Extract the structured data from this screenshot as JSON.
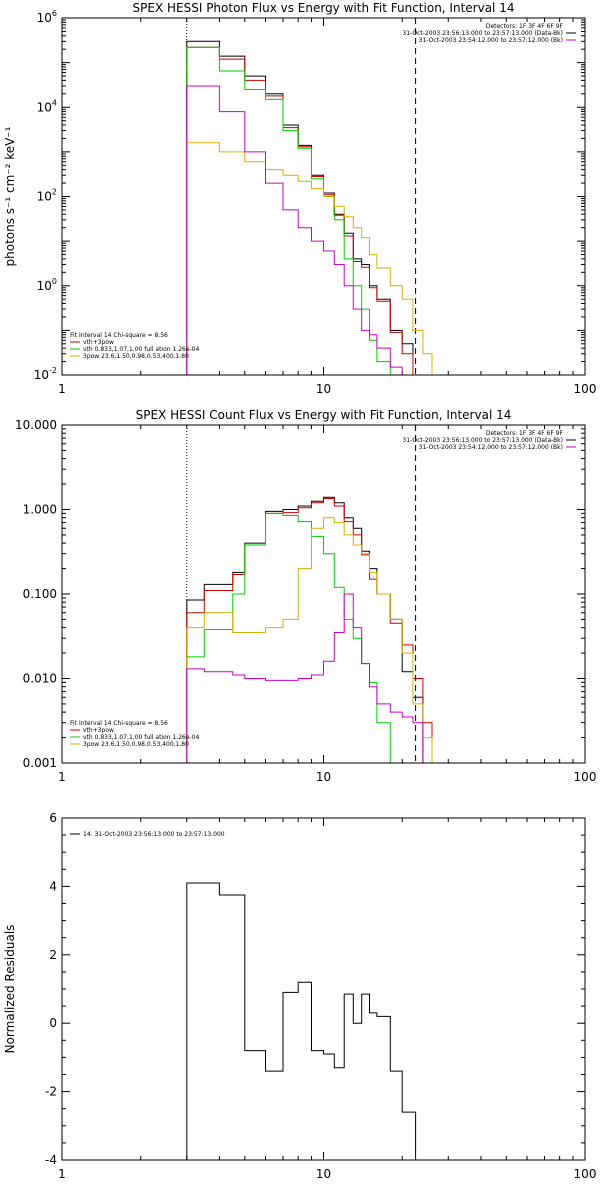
{
  "chart_data": [
    {
      "type": "line",
      "title": "SPEX HESSI Photon Flux vs Energy with Fit Function, Interval 14",
      "ylabel": "photons s⁻¹ cm⁻² keV⁻¹",
      "xlabel": "",
      "xscale": "log",
      "yscale": "log",
      "xlim": [
        1,
        100
      ],
      "ylim": [
        0.01,
        1000000
      ],
      "x_tick_labels": [
        "1",
        "10",
        "100"
      ],
      "y_ticks": [
        {
          "v": 0.01,
          "base": "10",
          "exp": "-2"
        },
        {
          "v": 1,
          "base": "10",
          "exp": "0"
        },
        {
          "v": 100,
          "base": "10",
          "exp": "2"
        },
        {
          "v": 10000,
          "base": "10",
          "exp": "4"
        },
        {
          "v": 1000000,
          "base": "10",
          "exp": "6"
        }
      ],
      "vlines": [
        {
          "x": 3.0,
          "style": "dotted",
          "color": "#000000"
        },
        {
          "x": 22.5,
          "style": "dashed",
          "color": "#000000"
        }
      ],
      "header_lines": [
        "Detectors: 1F 3F 4F 6F 9F",
        "31-Oct-2003 23:56:13.000 to 23:57:13.000 (Data-Bk)",
        "31-Oct-2003 23:54:12.000 to 23:57:12.000 (Bk)"
      ],
      "header_colors": [
        "#000000",
        "#000000",
        "#cc00cc"
      ],
      "legend_lines": [
        "Fit Interval 14    Chi-square = 8.56",
        "vth+3pow",
        "vth 0.833,1.07,1.00  full  ation 1.26e-04",
        "3pow 23.6,1.50,0.98,0.53,400,1.80"
      ],
      "legend_colors": [
        "#000000",
        "#cc0000",
        "#00cc00",
        "#d4b000"
      ],
      "edges": [
        3.0,
        3.5,
        4.0,
        4.5,
        5.0,
        6.0,
        7.0,
        8.0,
        9.0,
        10.0,
        11.0,
        12.0,
        13.0,
        14.0,
        15.0,
        16.0,
        18.0,
        20.0,
        22.0,
        24.0,
        26.0,
        28.0
      ],
      "series": [
        {
          "name": "Data-Bk",
          "color": "#000000",
          "values": [
            300000,
            300000,
            140000,
            140000,
            50000,
            20000,
            4000,
            1400,
            300,
            120,
            40,
            15,
            4,
            3,
            1,
            0.5,
            0.1,
            0.05,
            null,
            null,
            null
          ]
        },
        {
          "name": "vth+3pow",
          "color": "#cc0000",
          "values": [
            220000,
            220000,
            120000,
            120000,
            40000,
            18000,
            3500,
            1300,
            280,
            110,
            38,
            13,
            3.5,
            2.6,
            0.9,
            0.45,
            0.09,
            0.03,
            null,
            null,
            null
          ]
        },
        {
          "name": "vth",
          "color": "#00cc00",
          "values": [
            220000,
            220000,
            65000,
            65000,
            25000,
            15000,
            3000,
            1200,
            250,
            100,
            30,
            4,
            1,
            0.3,
            0.06,
            0.02,
            0.01,
            null,
            null,
            null,
            null
          ]
        },
        {
          "name": "3pow",
          "color": "#d4b000",
          "values": [
            1600,
            1600,
            1000,
            1000,
            600,
            400,
            300,
            220,
            150,
            100,
            60,
            35,
            20,
            12,
            5,
            2.5,
            1,
            0.5,
            0.1,
            0.03,
            0.01
          ]
        },
        {
          "name": "Bk",
          "color": "#cc00cc",
          "values": [
            30000,
            30000,
            8000,
            8000,
            1000,
            200,
            50,
            20,
            10,
            6,
            3,
            1,
            0.3,
            0.1,
            0.08,
            0.04,
            0.015,
            0.01,
            null,
            null,
            null
          ]
        }
      ]
    },
    {
      "type": "line",
      "title": "SPEX HESSI Count Flux vs Energy with Fit Function, Interval 14",
      "ylabel": "",
      "xlabel": "",
      "xscale": "log",
      "yscale": "log",
      "xlim": [
        1,
        100
      ],
      "ylim": [
        0.001,
        10
      ],
      "x_tick_labels": [
        "1",
        "10",
        "100"
      ],
      "y_ticks": [
        {
          "v": 0.001,
          "text": "0.001"
        },
        {
          "v": 0.01,
          "text": "0.010"
        },
        {
          "v": 0.1,
          "text": "0.100"
        },
        {
          "v": 1,
          "text": "1.000"
        },
        {
          "v": 10,
          "text": "10.000"
        }
      ],
      "vlines": [
        {
          "x": 3.0,
          "style": "dotted",
          "color": "#000000"
        },
        {
          "x": 22.5,
          "style": "dashed",
          "color": "#000000"
        }
      ],
      "header_lines": [
        "Detectors: 1F 3F 4F 6F 9F",
        "31-Oct-2003 23:56:13.000 to 23:57:13.000 (Data-Bk)",
        "31-Oct-2003 23:54:12.000 to 23:57:12.000 (Bk)"
      ],
      "header_colors": [
        "#000000",
        "#000000",
        "#cc00cc"
      ],
      "legend_lines": [
        "Fit Interval 14    Chi-square = 8.56",
        "vth+3pow",
        "vth 0.833,1.07,1.00  full  ation 1.26e-04",
        "3pow 23.6,1.50,0.98,0.53,400,1.80"
      ],
      "legend_colors": [
        "#000000",
        "#cc0000",
        "#00cc00",
        "#d4b000"
      ],
      "edges": [
        3.0,
        3.5,
        4.0,
        4.5,
        5.0,
        6.0,
        7.0,
        8.0,
        9.0,
        10.0,
        11.0,
        12.0,
        13.0,
        14.0,
        15.0,
        16.0,
        18.0,
        20.0,
        22.0,
        24.0,
        26.0,
        28.0
      ],
      "series": [
        {
          "name": "Data-Bk",
          "color": "#000000",
          "values": [
            0.085,
            0.13,
            0.13,
            0.18,
            0.4,
            0.95,
            1.0,
            1.1,
            1.25,
            1.4,
            1.2,
            0.8,
            0.6,
            0.32,
            0.2,
            0.1,
            0.05,
            0.012,
            0.006,
            null,
            null
          ]
        },
        {
          "name": "vth+3pow",
          "color": "#cc0000",
          "values": [
            0.06,
            0.11,
            0.11,
            0.17,
            0.38,
            0.9,
            0.92,
            1.05,
            1.2,
            1.35,
            1.1,
            0.72,
            0.5,
            0.29,
            0.15,
            0.1,
            0.045,
            0.025,
            0.01,
            0.003,
            null
          ]
        },
        {
          "name": "vth",
          "color": "#00cc00",
          "values": [
            0.018,
            0.038,
            0.038,
            0.1,
            0.38,
            0.9,
            0.85,
            0.72,
            0.48,
            0.3,
            0.12,
            0.05,
            0.03,
            0.015,
            0.009,
            0.003,
            null,
            null,
            null,
            null,
            null
          ]
        },
        {
          "name": "3pow",
          "color": "#d4b000",
          "values": [
            0.04,
            0.06,
            0.06,
            0.035,
            0.035,
            0.04,
            0.05,
            0.2,
            0.6,
            0.8,
            0.7,
            0.5,
            0.38,
            0.3,
            0.18,
            0.1,
            0.05,
            0.02,
            0.005,
            0.002,
            0.001
          ]
        },
        {
          "name": "Bk",
          "color": "#cc00cc",
          "values": [
            0.013,
            0.012,
            0.012,
            0.011,
            0.01,
            0.0095,
            0.0095,
            0.01,
            0.011,
            0.016,
            0.035,
            0.1,
            0.04,
            0.015,
            0.008,
            0.005,
            0.004,
            0.0035,
            0.003,
            null,
            null
          ]
        }
      ]
    },
    {
      "type": "line",
      "title": "",
      "ylabel": "Normalized Residuals",
      "xlabel": "",
      "xscale": "log",
      "yscale": "linear",
      "xlim": [
        1,
        100
      ],
      "ylim": [
        -4,
        6
      ],
      "x_tick_labels": [
        "1",
        "10",
        "100"
      ],
      "y_ticks": [
        {
          "v": -4,
          "text": "-4"
        },
        {
          "v": -2,
          "text": "-2"
        },
        {
          "v": 0,
          "text": "0"
        },
        {
          "v": 2,
          "text": "2"
        },
        {
          "v": 4,
          "text": "4"
        },
        {
          "v": 6,
          "text": "6"
        }
      ],
      "legend_lines": [
        "14. 31-Oct-2003 23:56:13.000 to 23:57:13.000"
      ],
      "legend_colors": [
        "#000000"
      ],
      "edges": [
        3.0,
        4.0,
        4.6,
        5.0,
        6.0,
        7.0,
        8.0,
        9.0,
        10.0,
        11.0,
        12.0,
        13.0,
        14.0,
        15.0,
        16.0,
        18.0,
        20.0,
        22.5
      ],
      "series": [
        {
          "name": "14. 31-Oct-2003 23:56:13.000 to 23:57:13.000",
          "color": "#000000",
          "values": [
            4.1,
            3.75,
            3.75,
            -0.8,
            -1.4,
            0.9,
            1.2,
            -0.8,
            -0.9,
            -1.3,
            0.85,
            0.0,
            0.85,
            0.3,
            0.2,
            -1.4,
            -2.6
          ]
        }
      ]
    }
  ]
}
